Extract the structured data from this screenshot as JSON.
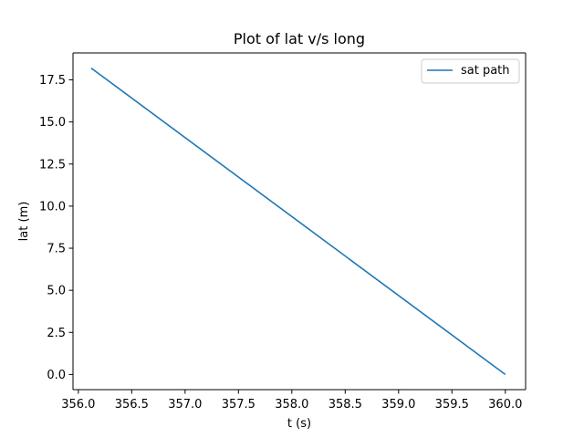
{
  "chart_data": {
    "type": "line",
    "title": "Plot of lat v/s long",
    "xlabel": "t (s)",
    "ylabel": "lat (m)",
    "xlim": [
      355.95,
      360.19
    ],
    "ylim": [
      -0.9,
      19.1
    ],
    "xticks": [
      356.0,
      356.5,
      357.0,
      357.5,
      358.0,
      358.5,
      359.0,
      359.5,
      360.0
    ],
    "xtick_labels": [
      "356.0",
      "356.5",
      "357.0",
      "357.5",
      "358.0",
      "358.5",
      "359.0",
      "359.5",
      "360.0"
    ],
    "yticks": [
      0.0,
      2.5,
      5.0,
      7.5,
      10.0,
      12.5,
      15.0,
      17.5
    ],
    "ytick_labels": [
      "0.0",
      "2.5",
      "5.0",
      "7.5",
      "10.0",
      "12.5",
      "15.0",
      "17.5"
    ],
    "grid": false,
    "legend_position": "top-right",
    "series": [
      {
        "name": "sat path",
        "color": "#1f77b4",
        "x": [
          356.12,
          360.0
        ],
        "y": [
          18.2,
          0.0
        ]
      }
    ]
  }
}
